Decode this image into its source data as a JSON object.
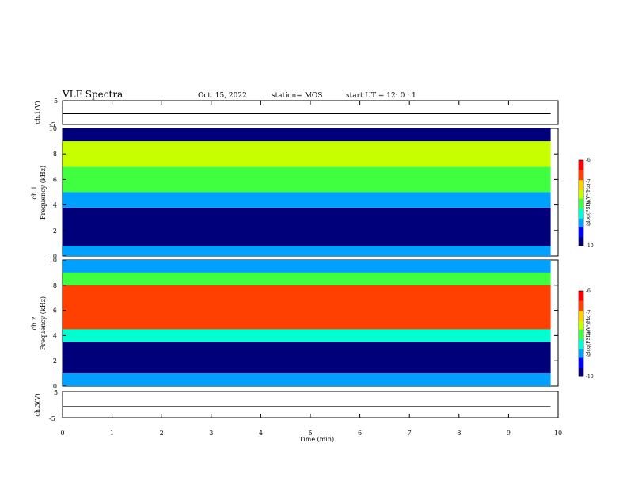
{
  "header": {
    "title": "VLF Spectra",
    "date": "Oct. 15, 2022",
    "station": "station= MOS",
    "start": "start  UT =   12: 0  : 1"
  },
  "chart_data": [
    {
      "type": "line",
      "panel": "ch1-voltage",
      "ylabel": "ch.1(V)",
      "ylim": [
        -5,
        5
      ],
      "yticks": [
        -5,
        5
      ],
      "xlim": [
        0,
        10
      ],
      "series": [
        {
          "values_x": [
            0,
            9.85
          ],
          "values_y": [
            -0.4,
            -0.4
          ]
        }
      ]
    },
    {
      "type": "heatmap",
      "panel": "ch1-spectrogram",
      "ylabel": "ch.1\nFrequency (kHz)",
      "ylim": [
        0,
        10
      ],
      "yticks": [
        0,
        2,
        4,
        6,
        8,
        10
      ],
      "xlim": [
        0,
        9.85
      ],
      "bands": [
        {
          "f0": 0,
          "f1": 0.8,
          "level": -9.0
        },
        {
          "f0": 0.8,
          "f1": 3.8,
          "level": -9.6
        },
        {
          "f0": 3.8,
          "f1": 5.0,
          "level": -8.9
        },
        {
          "f0": 5.0,
          "f1": 7.0,
          "level": -8.2
        },
        {
          "f0": 7.0,
          "f1": 9.0,
          "level": -7.6
        },
        {
          "f0": 9.0,
          "f1": 10.0,
          "level": -9.9
        }
      ],
      "colorbar": {
        "label": "log(PSD)(V²/Hz)",
        "ticks": [
          -6,
          -7,
          -8,
          -9,
          -10
        ]
      }
    },
    {
      "type": "heatmap",
      "panel": "ch2-spectrogram",
      "ylabel": "ch.2\nFrequency (kHz)",
      "ylim": [
        0,
        10
      ],
      "yticks": [
        0,
        2,
        4,
        6,
        8,
        10
      ],
      "xlim": [
        0,
        9.85
      ],
      "bands": [
        {
          "f0": 0,
          "f1": 1.0,
          "level": -8.8
        },
        {
          "f0": 1.0,
          "f1": 3.5,
          "level": -9.6
        },
        {
          "f0": 3.5,
          "f1": 4.5,
          "level": -8.4
        },
        {
          "f0": 4.5,
          "f1": 8.0,
          "level": -6.8
        },
        {
          "f0": 8.0,
          "f1": 9.0,
          "level": -8.0
        },
        {
          "f0": 9.0,
          "f1": 10.0,
          "level": -8.8
        }
      ],
      "colorbar": {
        "label": "log(PSD)(V²/Hz)",
        "ticks": [
          -6,
          -7,
          -8,
          -9,
          -10
        ]
      }
    },
    {
      "type": "line",
      "panel": "ch3-voltage",
      "ylabel": "ch.3(V)",
      "ylim": [
        -5,
        5
      ],
      "yticks": [
        -5,
        5
      ],
      "xlim": [
        0,
        10
      ],
      "xlabel": "Time (min)",
      "xticks": [
        0,
        1,
        2,
        3,
        4,
        5,
        6,
        7,
        8,
        9,
        10
      ],
      "series": [
        {
          "values_x": [
            0,
            9.85
          ],
          "values_y": [
            -0.8,
            -0.8
          ]
        }
      ]
    }
  ],
  "colors": {
    "colormap": [
      "#00007a",
      "#0000ff",
      "#00a0ff",
      "#00ffd0",
      "#40ff40",
      "#c8ff00",
      "#ffd000",
      "#ff4000",
      "#ff0000",
      "#ffffff"
    ]
  }
}
